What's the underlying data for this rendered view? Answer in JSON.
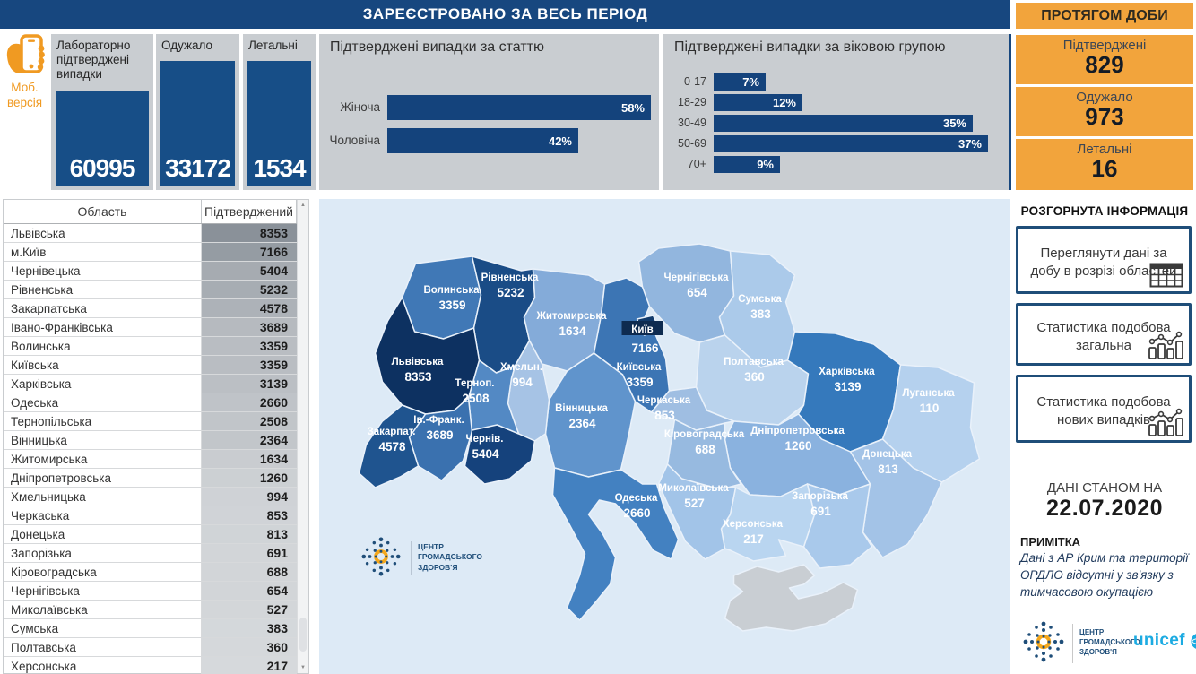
{
  "header": {
    "main_title": "ЗАРЕЄСТРОВАНО ЗА ВЕСЬ ПЕРІОД",
    "right_title": "ПРОТЯГОМ ДОБИ"
  },
  "mobile": {
    "label_line1": "Моб.",
    "label_line2": "версія"
  },
  "totals": [
    {
      "label": "Лабораторно підтверджені випадки",
      "value": "60995"
    },
    {
      "label": "Одужало",
      "value": "33172"
    },
    {
      "label": "Летальні",
      "value": "1534"
    }
  ],
  "daily": [
    {
      "label": "Підтверджені",
      "value": "829"
    },
    {
      "label": "Одужало",
      "value": "973"
    },
    {
      "label": "Летальні",
      "value": "16"
    }
  ],
  "info_panel": {
    "title": "РОЗГОРНУТА ІНФОРМАЦІЯ",
    "buttons": [
      {
        "label": "Переглянути дані за добу в розрізі областей",
        "icon": "table-icon"
      },
      {
        "label": "Статистика подобова загальна",
        "icon": "combo-chart-icon"
      },
      {
        "label": "Статистика подобова нових випадків",
        "icon": "combo-chart-icon"
      }
    ],
    "data_as_of_label": "ДАНІ СТАНОМ НА",
    "data_as_of_date": "22.07.2020",
    "note_title": "ПРИМІТКА",
    "note_text": "Дані з АР Крим та території ОРДЛО відсутні у зв'язку з тимчасовою окупацією"
  },
  "branding": {
    "phc_logo_text": "ЦЕНТР ГРОМАДСЬКОГО ЗДОРОВ'Я",
    "unicef_logo_text": "unicef"
  },
  "table": {
    "columns": [
      "Область",
      "Підтверджений"
    ],
    "rows": [
      {
        "region": "Львівська",
        "value": 8353
      },
      {
        "region": "м.Київ",
        "value": 7166
      },
      {
        "region": "Чернівецька",
        "value": 5404
      },
      {
        "region": "Рівненська",
        "value": 5232
      },
      {
        "region": "Закарпатська",
        "value": 4578
      },
      {
        "region": "Івано-Франківська",
        "value": 3689
      },
      {
        "region": "Волинська",
        "value": 3359
      },
      {
        "region": "Київська",
        "value": 3359
      },
      {
        "region": "Харківська",
        "value": 3139
      },
      {
        "region": "Одеська",
        "value": 2660
      },
      {
        "region": "Тернопільська",
        "value": 2508
      },
      {
        "region": "Вінницька",
        "value": 2364
      },
      {
        "region": "Житомирська",
        "value": 1634
      },
      {
        "region": "Дніпропетровська",
        "value": 1260
      },
      {
        "region": "Хмельницька",
        "value": 994
      },
      {
        "region": "Черкаська",
        "value": 853
      },
      {
        "region": "Донецька",
        "value": 813
      },
      {
        "region": "Запорізька",
        "value": 691
      },
      {
        "region": "Кіровоградська",
        "value": 688
      },
      {
        "region": "Чернігівська",
        "value": 654
      },
      {
        "region": "Миколаївська",
        "value": 527
      },
      {
        "region": "Сумська",
        "value": 383
      },
      {
        "region": "Полтавська",
        "value": 360
      },
      {
        "region": "Херсонська",
        "value": 217
      }
    ]
  },
  "chart_data": [
    {
      "type": "bar",
      "orientation": "horizontal",
      "title": "Підтверджені випадки за статтю",
      "categories": [
        "Жіноча",
        "Чоловіча"
      ],
      "values": [
        58,
        42
      ],
      "unit": "%",
      "xlim": [
        0,
        58
      ],
      "bar_color": "#14437C"
    },
    {
      "type": "bar",
      "orientation": "horizontal",
      "title": "Підтверджені випадки за віковою групою",
      "categories": [
        "0-17",
        "18-29",
        "30-49",
        "50-69",
        "70+"
      ],
      "values": [
        7,
        12,
        35,
        37,
        9
      ],
      "unit": "%",
      "xlim": [
        0,
        37
      ],
      "bar_color": "#14437C"
    },
    {
      "type": "heatmap",
      "subtype": "choropleth-map-ukraine",
      "value_label": "Підтверджений",
      "regions": [
        {
          "id": "lviv",
          "name": "Львівська",
          "value": 8353,
          "color": "#0D3161"
        },
        {
          "id": "kyiv_city",
          "name": "Київ",
          "value": 7166,
          "color": "#123B6B"
        },
        {
          "id": "chernivtsi",
          "name": "Чернів.",
          "value": 5404,
          "color": "#15427C"
        },
        {
          "id": "rivne",
          "name": "Рівненська",
          "value": 5232,
          "color": "#1A4C86"
        },
        {
          "id": "zakarpattia",
          "name": "Закарпат.",
          "value": 4578,
          "color": "#1F548F"
        },
        {
          "id": "ivano_frankivsk",
          "name": "Ів.-Франк.",
          "value": 3689,
          "color": "#3A71AF"
        },
        {
          "id": "volyn",
          "name": "Волинська",
          "value": 3359,
          "color": "#4078B6"
        },
        {
          "id": "kyiv_obl",
          "name": "Київська",
          "value": 3359,
          "color": "#3C75B4"
        },
        {
          "id": "kharkiv",
          "name": "Харківська",
          "value": 3139,
          "color": "#3579BC"
        },
        {
          "id": "odesa",
          "name": "Одеська",
          "value": 2660,
          "color": "#4381C1"
        },
        {
          "id": "ternopil",
          "name": "Терноп.",
          "value": 2508,
          "color": "#5389C4"
        },
        {
          "id": "vinnytsia",
          "name": "Вінницька",
          "value": 2364,
          "color": "#6094CC"
        },
        {
          "id": "zhytomyr",
          "name": "Житомирська",
          "value": 1634,
          "color": "#84ABD9"
        },
        {
          "id": "dnipro",
          "name": "Дніпропетровська",
          "value": 1260,
          "color": "#8AB2DF"
        },
        {
          "id": "khmelnytskyi",
          "name": "Хмельн.",
          "value": 994,
          "color": "#A6C3E5"
        },
        {
          "id": "cherkasy",
          "name": "Черкаська",
          "value": 853,
          "color": "#9FBEE2"
        },
        {
          "id": "donetsk",
          "name": "Донецька",
          "value": 813,
          "color": "#A3C3E7"
        },
        {
          "id": "zaporizhzhia",
          "name": "Запорізька",
          "value": 691,
          "color": "#A9C9EB"
        },
        {
          "id": "kirovohrad",
          "name": "Кіровоградська",
          "value": 688,
          "color": "#97BAE0"
        },
        {
          "id": "chernihiv",
          "name": "Чернігівська",
          "value": 654,
          "color": "#92B6DE"
        },
        {
          "id": "mykolaiv",
          "name": "Миколаївська",
          "value": 527,
          "color": "#A2C4E8"
        },
        {
          "id": "sumy",
          "name": "Сумська",
          "value": 383,
          "color": "#ABCAEA"
        },
        {
          "id": "poltava",
          "name": "Полтавська",
          "value": 360,
          "color": "#BAD3ED"
        },
        {
          "id": "kherson",
          "name": "Херсонська",
          "value": 217,
          "color": "#B9D5F0"
        },
        {
          "id": "luhansk",
          "name": "Луганська",
          "value": 110,
          "color": "#B5D1EE"
        }
      ]
    }
  ],
  "colors": {
    "header_blue": "#17477F",
    "tile_blue": "#174E87",
    "bar_blue": "#14437C",
    "panel_gray": "#C9CDD1",
    "accent_orange": "#F2A43C",
    "mobile_orange": "#F09A22",
    "map_background": "#DDEAF6",
    "map_no_data": "#C9CED3",
    "kyiv_label_box": "#0E2B50",
    "unicef_blue": "#1CABE2",
    "phc_navy": "#1F4E79",
    "table_shade_max": "#8A9199",
    "table_shade_min": "#D6D9DC"
  }
}
